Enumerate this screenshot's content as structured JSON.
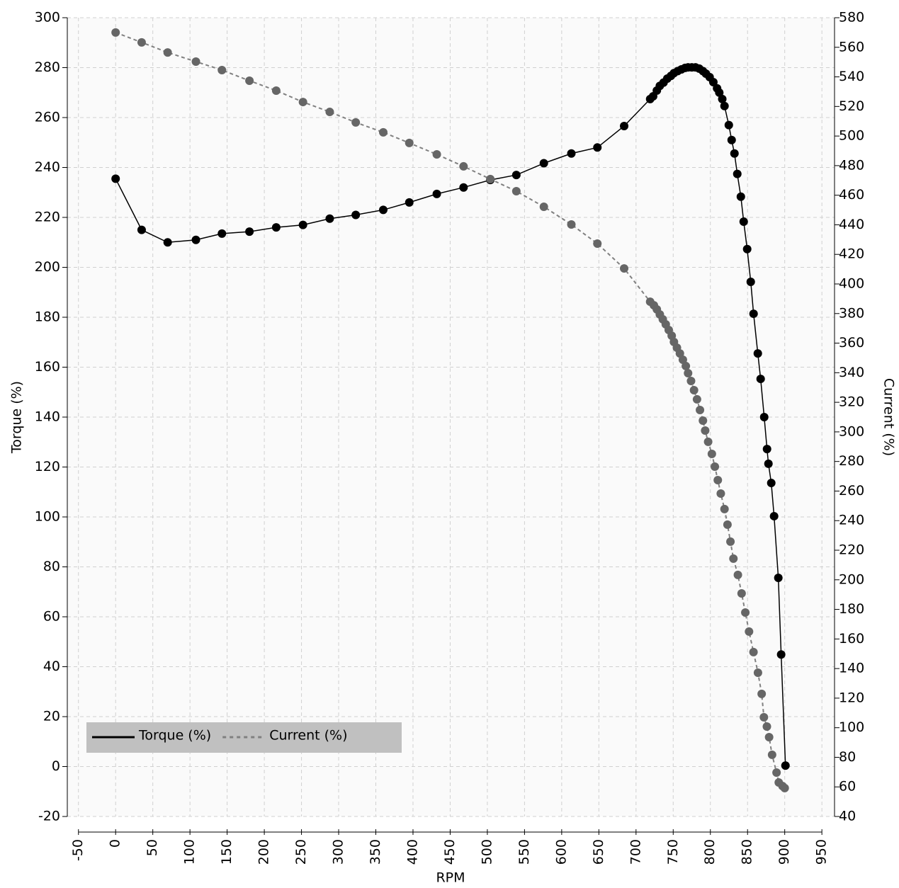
{
  "chart_data": {
    "type": "line",
    "x_label": "RPM",
    "y_label": "Torque (%)",
    "y2_label": "Current (%)",
    "xlim": [
      -65,
      967
    ],
    "ylim": [
      -20,
      300
    ],
    "y2lim": [
      40,
      580
    ],
    "xticks": [
      -50,
      0,
      50,
      100,
      150,
      200,
      250,
      300,
      350,
      400,
      450,
      500,
      550,
      600,
      650,
      700,
      750,
      800,
      850,
      900,
      950
    ],
    "yticks": [
      -20,
      0,
      20,
      40,
      60,
      80,
      100,
      120,
      140,
      160,
      180,
      200,
      220,
      240,
      260,
      280,
      300
    ],
    "y2ticks": [
      40,
      60,
      80,
      100,
      120,
      140,
      160,
      180,
      200,
      220,
      240,
      260,
      280,
      300,
      320,
      340,
      360,
      380,
      400,
      420,
      440,
      460,
      480,
      500,
      520,
      540,
      560,
      580
    ],
    "grid": true,
    "legend": "lower left",
    "series": [
      {
        "name": "Torque (%)",
        "color": "#000000",
        "marker_color": "#000000",
        "line_style": "solid",
        "x": [
          0,
          35,
          70,
          108,
          143,
          180,
          216,
          252,
          288,
          323,
          360,
          395,
          432,
          468,
          504,
          539,
          576,
          613,
          648,
          684,
          719,
          723,
          728,
          732,
          737,
          742,
          747,
          751,
          756,
          761,
          766,
          770,
          775,
          780,
          785,
          790,
          794,
          799,
          804,
          809,
          812,
          816,
          819,
          824.8,
          828.6,
          832.4,
          836.2,
          841,
          844.8,
          849.5,
          854.3,
          858.1,
          863.8,
          867.6,
          872.4,
          876.2,
          878.1,
          881.9,
          885.7,
          891.4,
          895.2,
          901
        ],
        "values": [
          235.5,
          215,
          210,
          211,
          213.5,
          214.3,
          216,
          217,
          219.5,
          221,
          223,
          226,
          229.4,
          232,
          235,
          237,
          241.7,
          245.6,
          248,
          256.6,
          267.4,
          268.5,
          270.8,
          272.7,
          274,
          275.6,
          276.7,
          277.8,
          278.6,
          279.3,
          279.9,
          280.1,
          280.1,
          280.1,
          279.6,
          278.6,
          277.6,
          276.2,
          274.2,
          271.7,
          270,
          267.4,
          264.6,
          257,
          251,
          245.6,
          237.4,
          228.3,
          218.3,
          207.3,
          194.2,
          181.4,
          165.5,
          155.3,
          140,
          127.2,
          121.3,
          113.6,
          100.3,
          75.6,
          44.9,
          0.4
        ]
      },
      {
        "name": "Current (%)",
        "color": "#808080",
        "marker_color": "#666666",
        "line_style": "dashed",
        "axis": "y2",
        "x": [
          0,
          35,
          70,
          108,
          143,
          180,
          216,
          252,
          288,
          323,
          360,
          395,
          432,
          468,
          504,
          539,
          576,
          613,
          648,
          684,
          719,
          724,
          728,
          732,
          736,
          740,
          744,
          748,
          751,
          755,
          759,
          763,
          767,
          770,
          774,
          778,
          782,
          786,
          790,
          793,
          797,
          802,
          806,
          810,
          814,
          819,
          823,
          827,
          831,
          837,
          842,
          847,
          852,
          858,
          864,
          869,
          872,
          876,
          879,
          883,
          889,
          892,
          897,
          900
        ],
        "values": [
          570,
          563.3,
          556.5,
          550.3,
          544.6,
          537.4,
          530.7,
          523,
          516.3,
          509.2,
          502.5,
          495.3,
          487.6,
          479.5,
          470.9,
          462.7,
          452.2,
          440.2,
          427.3,
          410.5,
          388,
          385.6,
          382.8,
          379.4,
          376.1,
          372.7,
          368.9,
          365,
          360.8,
          356.9,
          353,
          348.8,
          344.5,
          339.7,
          334.4,
          328.2,
          322,
          314.8,
          307.6,
          300.9,
          293.3,
          285.1,
          276.5,
          267.4,
          258.3,
          247.8,
          237.3,
          225.8,
          214.3,
          203.3,
          190.8,
          177.9,
          165,
          151.1,
          137.2,
          122.9,
          107.1,
          100.8,
          93.6,
          81.7,
          69.7,
          63,
          60.6,
          59.2
        ]
      }
    ]
  }
}
